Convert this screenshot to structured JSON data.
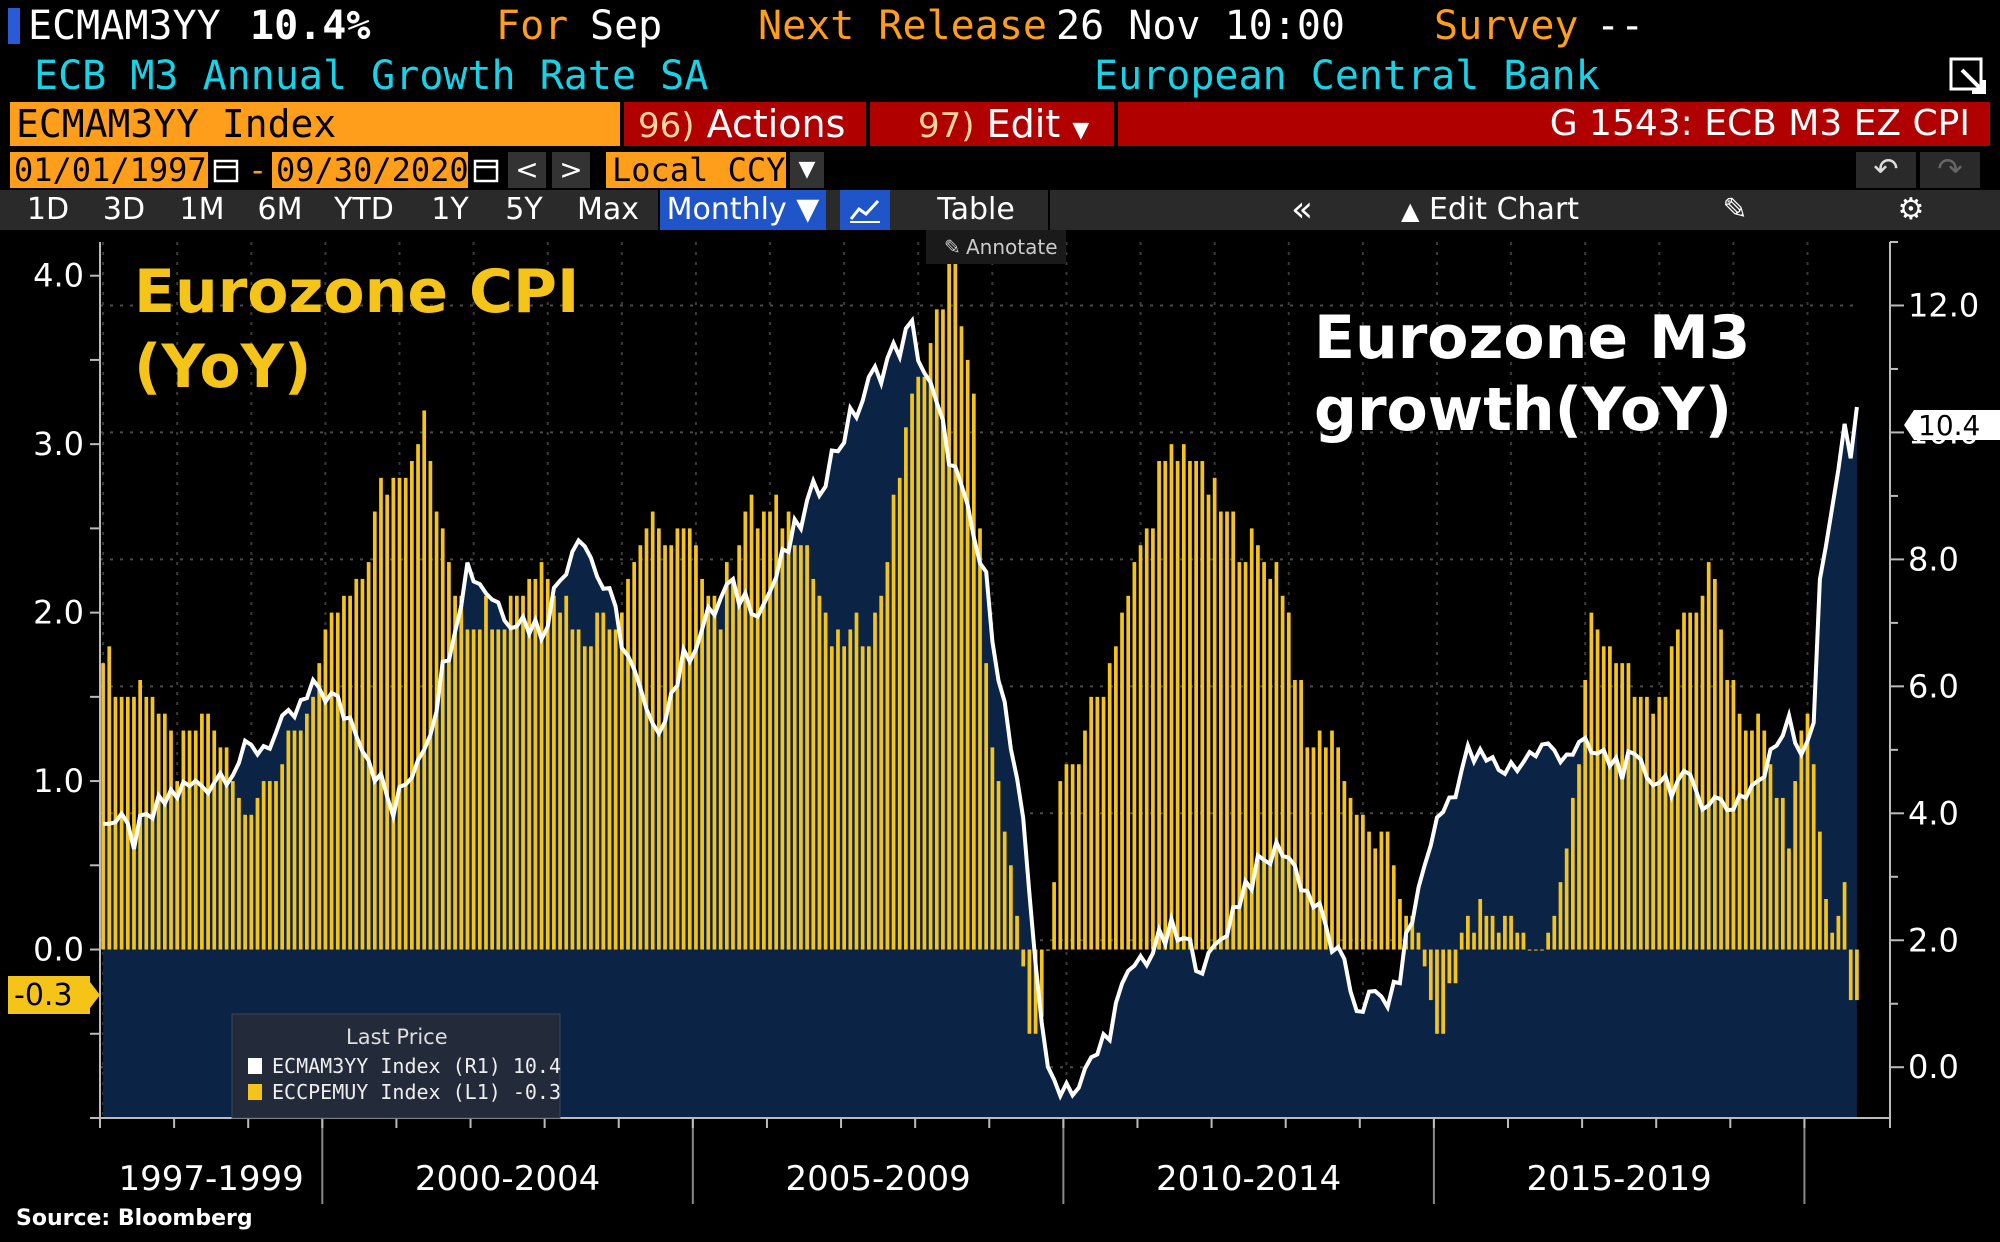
{
  "header": {
    "ticker": "ECMAM3YY",
    "last_value": "10.4%",
    "for_label": "For",
    "for_period": "Sep",
    "next_release_label": "Next Release",
    "next_release_value": "26 Nov 10:00",
    "survey_label": "Survey",
    "survey_value": "--",
    "series_name": "ECB M3 Annual Growth Rate SA",
    "source_org": "European Central Bank"
  },
  "command_bar": {
    "ticker_input": "ECMAM3YY Index",
    "actions_num": "96)",
    "actions_label": "Actions",
    "edit_num": "97)",
    "edit_label": "Edit",
    "chart_title": "G 1543: ECB M3 EZ CPI"
  },
  "date_bar": {
    "start_date": "01/01/1997",
    "dash": "-",
    "end_date": "09/30/2020",
    "prev": "<",
    "next": ">",
    "currency": "Local CCY"
  },
  "toolbar": {
    "ranges": [
      "1D",
      "3D",
      "1M",
      "6M",
      "YTD",
      "1Y",
      "5Y",
      "Max"
    ],
    "period": "Monthly ▼",
    "table": "Table",
    "collapse": "«",
    "edit_chart": "Edit Chart",
    "annotate": "Annotate"
  },
  "colors": {
    "cpi_bars": "#f4c518",
    "m3_line": "#ffffff",
    "m3_area": "#0b2344",
    "orange": "#ff9e1b",
    "red": "#b00000"
  },
  "chart_data": {
    "type": "bar",
    "x_start": "1997-01",
    "x_end": "2020-09",
    "frequency": "monthly",
    "left_axis": {
      "ylim": [
        -1.0,
        4.2
      ],
      "ticks": [
        0.0,
        1.0,
        2.0,
        3.0,
        4.0
      ],
      "tick_labels": [
        "0.0",
        "1.0",
        "2.0",
        "3.0",
        "4.0"
      ]
    },
    "right_axis": {
      "ylim": [
        -0.8,
        13.0
      ],
      "ticks": [
        0.0,
        2.0,
        4.0,
        6.0,
        8.0,
        10.0,
        12.0
      ],
      "tick_labels": [
        "0.0",
        "2.0",
        "4.0",
        "6.0",
        "8.0",
        "10.0",
        "12.0"
      ]
    },
    "x_tick_labels": [
      "1997-1999",
      "2000-2004",
      "2005-2009",
      "2010-2014",
      "2015-2019"
    ],
    "annotations": {
      "cpi_title": [
        "Eurozone CPI",
        "(YoY)"
      ],
      "m3_title": [
        "Eurozone M3",
        "growth(YoY)"
      ]
    },
    "last_labels": {
      "m3": "10.4",
      "cpi": "-0.3"
    },
    "legend": {
      "title": "Last Price",
      "items": [
        {
          "label": "ECMAM3YY Index  (R1) 10.4",
          "color": "#ffffff"
        },
        {
          "label": "ECCPEMUY Index  (L1) -0.3",
          "color": "#f4c518"
        }
      ],
      "position": "bottom-left"
    },
    "series": [
      {
        "name": "ECCPEMUY Index",
        "axis": "left",
        "kind": "bar",
        "anchors": [
          [
            "1997-01",
            1.8
          ],
          [
            "1997-04",
            1.5
          ],
          [
            "1997-08",
            1.6
          ],
          [
            "1998-01",
            1.1
          ],
          [
            "1998-06",
            1.4
          ],
          [
            "1998-12",
            0.8
          ],
          [
            "1999-04",
            1.1
          ],
          [
            "1999-08",
            1.2
          ],
          [
            "1999-12",
            1.7
          ],
          [
            "2000-03",
            2.0
          ],
          [
            "2000-06",
            2.1
          ],
          [
            "2000-10",
            2.7
          ],
          [
            "2001-05",
            3.1
          ],
          [
            "2001-08",
            2.4
          ],
          [
            "2001-12",
            2.0
          ],
          [
            "2002-05",
            2.0
          ],
          [
            "2002-12",
            2.3
          ],
          [
            "2003-06",
            1.9
          ],
          [
            "2003-12",
            2.0
          ],
          [
            "2004-05",
            2.5
          ],
          [
            "2004-12",
            2.4
          ],
          [
            "2005-05",
            2.0
          ],
          [
            "2005-09",
            2.6
          ],
          [
            "2006-06",
            2.5
          ],
          [
            "2006-11",
            1.8
          ],
          [
            "2007-06",
            1.9
          ],
          [
            "2007-11",
            3.1
          ],
          [
            "2008-06",
            4.0
          ],
          [
            "2008-07",
            4.1
          ],
          [
            "2008-10",
            3.2
          ],
          [
            "2008-12",
            1.6
          ],
          [
            "2009-03",
            0.6
          ],
          [
            "2009-06",
            -0.1
          ],
          [
            "2009-07",
            -0.6
          ],
          [
            "2009-10",
            -0.1
          ],
          [
            "2009-12",
            0.9
          ],
          [
            "2010-06",
            1.5
          ],
          [
            "2010-12",
            2.2
          ],
          [
            "2011-04",
            2.8
          ],
          [
            "2011-09",
            3.0
          ],
          [
            "2011-12",
            2.7
          ],
          [
            "2012-06",
            2.4
          ],
          [
            "2012-12",
            2.2
          ],
          [
            "2013-04",
            1.2
          ],
          [
            "2013-08",
            1.3
          ],
          [
            "2013-12",
            0.8
          ],
          [
            "2014-06",
            0.5
          ],
          [
            "2014-12",
            -0.2
          ],
          [
            "2015-01",
            -0.6
          ],
          [
            "2015-06",
            0.2
          ],
          [
            "2015-12",
            0.2
          ],
          [
            "2016-05",
            -0.1
          ],
          [
            "2016-08",
            0.2
          ],
          [
            "2016-12",
            1.1
          ],
          [
            "2017-02",
            2.0
          ],
          [
            "2017-09",
            1.5
          ],
          [
            "2017-12",
            1.4
          ],
          [
            "2018-06",
            2.0
          ],
          [
            "2018-10",
            2.3
          ],
          [
            "2018-12",
            1.5
          ],
          [
            "2019-06",
            1.3
          ],
          [
            "2019-10",
            0.7
          ],
          [
            "2019-12",
            1.3
          ],
          [
            "2020-01",
            1.4
          ],
          [
            "2020-03",
            0.7
          ],
          [
            "2020-05",
            0.1
          ],
          [
            "2020-07",
            0.4
          ],
          [
            "2020-08",
            -0.2
          ],
          [
            "2020-09",
            -0.3
          ]
        ]
      },
      {
        "name": "ECMAM3YY Index",
        "axis": "right",
        "kind": "line-area",
        "anchors": [
          [
            "1997-01",
            4.0
          ],
          [
            "1997-06",
            3.6
          ],
          [
            "1997-12",
            4.3
          ],
          [
            "1998-06",
            4.5
          ],
          [
            "1998-12",
            4.9
          ],
          [
            "1999-06",
            5.3
          ],
          [
            "1999-12",
            6.0
          ],
          [
            "2000-06",
            5.4
          ],
          [
            "2000-12",
            4.0
          ],
          [
            "2001-06",
            5.4
          ],
          [
            "2001-12",
            7.9
          ],
          [
            "2002-06",
            7.2
          ],
          [
            "2002-12",
            6.9
          ],
          [
            "2003-06",
            8.5
          ],
          [
            "2003-12",
            7.1
          ],
          [
            "2004-06",
            5.2
          ],
          [
            "2004-12",
            6.6
          ],
          [
            "2005-06",
            7.5
          ],
          [
            "2005-12",
            7.3
          ],
          [
            "2006-06",
            8.6
          ],
          [
            "2006-12",
            9.8
          ],
          [
            "2007-06",
            10.9
          ],
          [
            "2007-12",
            11.6
          ],
          [
            "2008-06",
            9.7
          ],
          [
            "2008-12",
            7.6
          ],
          [
            "2009-06",
            3.7
          ],
          [
            "2009-10",
            -0.2
          ],
          [
            "2010-03",
            -0.3
          ],
          [
            "2010-06",
            0.2
          ],
          [
            "2010-12",
            1.6
          ],
          [
            "2011-06",
            2.1
          ],
          [
            "2011-12",
            1.6
          ],
          [
            "2012-06",
            2.9
          ],
          [
            "2012-12",
            3.5
          ],
          [
            "2013-06",
            2.4
          ],
          [
            "2013-12",
            1.0
          ],
          [
            "2014-06",
            1.1
          ],
          [
            "2014-12",
            3.6
          ],
          [
            "2015-06",
            4.9
          ],
          [
            "2015-12",
            4.7
          ],
          [
            "2016-06",
            5.0
          ],
          [
            "2016-12",
            5.0
          ],
          [
            "2017-06",
            4.8
          ],
          [
            "2017-12",
            4.6
          ],
          [
            "2018-06",
            4.4
          ],
          [
            "2018-12",
            4.1
          ],
          [
            "2019-06",
            4.6
          ],
          [
            "2019-10",
            5.6
          ],
          [
            "2019-12",
            5.0
          ],
          [
            "2020-02",
            5.5
          ],
          [
            "2020-03",
            7.5
          ],
          [
            "2020-05",
            8.9
          ],
          [
            "2020-07",
            10.2
          ],
          [
            "2020-08",
            9.5
          ],
          [
            "2020-09",
            10.4
          ]
        ]
      }
    ],
    "source": "Source: Bloomberg"
  }
}
